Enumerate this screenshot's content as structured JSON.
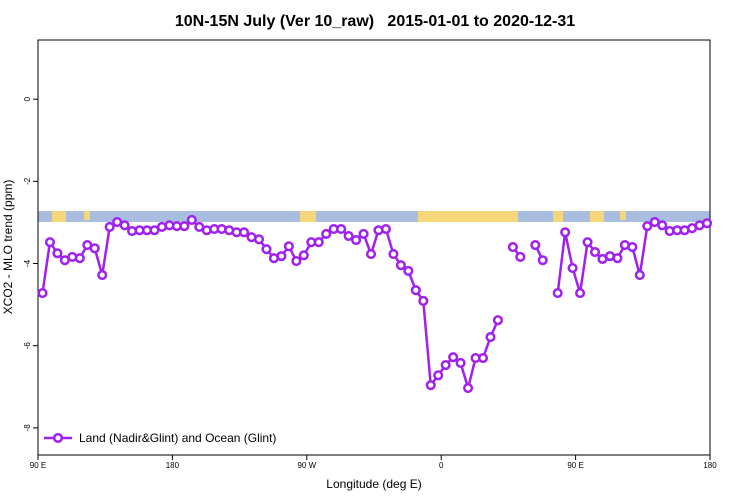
{
  "chart_data": {
    "type": "line",
    "title": "10N-15N July (Ver 10_raw)   2015-01-01 to 2020-12-31",
    "x_label": "Longitude (deg E)",
    "y_label": "XCO2 - MLO trend (ppm)",
    "x": [
      93,
      98,
      103,
      108,
      113,
      118,
      123,
      128,
      133,
      138,
      143,
      148,
      153,
      158,
      163,
      168,
      173,
      178,
      183,
      188,
      193,
      198,
      203,
      208,
      213,
      218,
      223,
      228,
      233,
      238,
      243,
      248,
      253,
      258,
      263,
      268,
      273,
      278,
      283,
      288,
      293,
      298,
      303,
      308,
      313,
      318,
      323,
      328,
      333,
      338,
      343,
      348,
      353,
      358,
      363,
      368,
      373,
      378,
      383,
      388,
      393,
      398,
      403,
      408,
      413,
      418,
      423,
      428,
      433,
      438,
      443,
      448,
      453,
      458,
      463,
      468,
      473,
      478,
      483,
      488,
      493,
      498,
      503,
      508,
      513,
      518,
      523,
      528,
      533,
      538
    ],
    "xlim": [
      90,
      540
    ],
    "xticks": [
      {
        "value": 90,
        "label": "90 E"
      },
      180,
      {
        "value": 270,
        "label": "90 W"
      },
      {
        "value": 360,
        "label": "0"
      },
      {
        "value": 450,
        "label": "90 E"
      },
      {
        "value": 540,
        "label": "180"
      }
    ],
    "ylim": [
      -8.66,
      1.44
    ],
    "yticks": [
      0,
      -2,
      -4,
      -6,
      -8
    ],
    "legend": "bottom-left",
    "series": [
      {
        "name": "Land (Nadir&Glint) and Ocean (Glint)",
        "color": "#a020f0",
        "values": [
          -4.72,
          -3.48,
          -3.75,
          -3.92,
          -3.84,
          -3.87,
          -3.55,
          -3.63,
          -4.28,
          -3.11,
          -2.99,
          -3.07,
          -3.21,
          -3.19,
          -3.19,
          -3.19,
          -3.11,
          -3.07,
          -3.09,
          -3.09,
          -2.94,
          -3.11,
          -3.19,
          -3.16,
          -3.16,
          -3.19,
          -3.24,
          -3.24,
          -3.36,
          -3.41,
          -3.65,
          -3.87,
          -3.82,
          -3.58,
          -3.94,
          -3.8,
          -3.48,
          -3.48,
          -3.28,
          -3.16,
          -3.16,
          -3.33,
          -3.43,
          -3.28,
          -3.77,
          -3.19,
          -3.16,
          -3.77,
          -4.04,
          -4.18,
          -4.65,
          -4.91,
          -6.96,
          -6.72,
          -6.47,
          -6.28,
          -6.42,
          -7.03,
          -6.3,
          -6.3,
          -5.79,
          -5.38,
          null,
          -3.6,
          -3.84,
          null,
          -3.55,
          -3.92,
          null,
          -4.72,
          -3.24,
          -4.11,
          -4.72,
          -3.48,
          -3.72,
          -3.89,
          -3.82,
          -3.87,
          -3.55,
          -3.6,
          -4.28,
          -3.09,
          -2.99,
          -3.07,
          -3.21,
          -3.19,
          -3.19,
          -3.14,
          -3.07,
          -3.02
        ]
      }
    ]
  }
}
